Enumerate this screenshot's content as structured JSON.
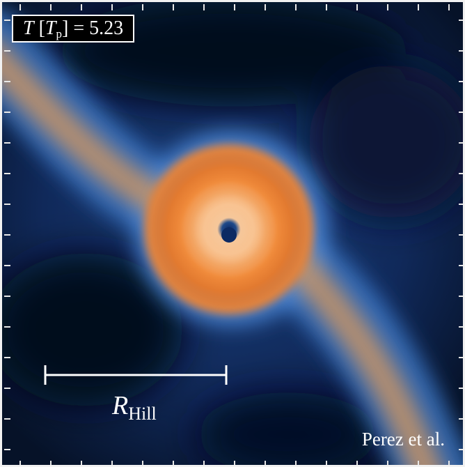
{
  "time_label": {
    "symbol": "T",
    "unit_symbol": "T",
    "unit_subscript": "p",
    "value_text": "= 5.23"
  },
  "scale_bar": {
    "symbol": "R",
    "subscript": "Hill"
  },
  "credit": "Perez et al.",
  "colors": {
    "background_dark": "#061228",
    "gas_blue": "#3f7fd0",
    "spiral_arm": "#c8905e",
    "disk_orange": "#f08a3a",
    "disk_core": "#f6c38f",
    "annotation_white": "#ffffff"
  }
}
